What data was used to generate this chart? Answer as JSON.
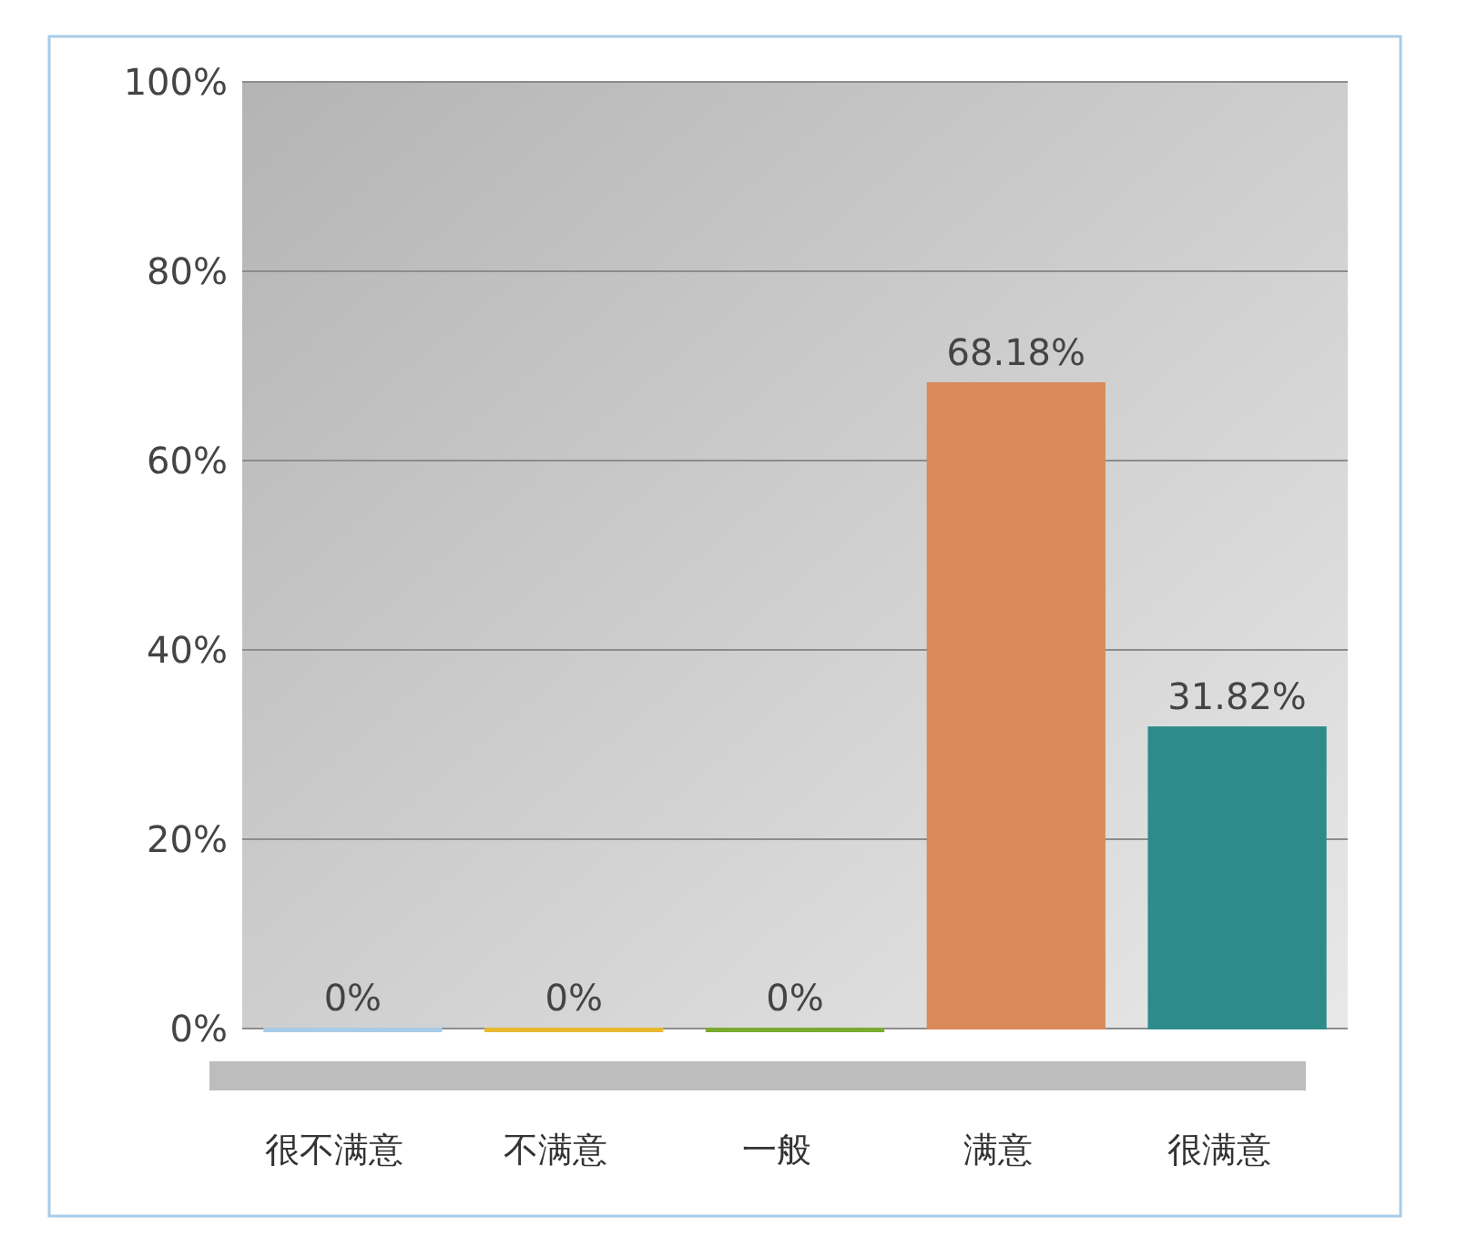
{
  "chart_data": {
    "type": "bar",
    "categories": [
      "很不满意",
      "不满意",
      "一般",
      "满意",
      "很满意"
    ],
    "values": [
      0,
      0,
      0,
      68.18,
      31.82
    ],
    "colors": [
      "#a8cce8",
      "#e8b830",
      "#7aaa30",
      "#d9895a",
      "#2e8b8b"
    ],
    "value_labels": [
      "0%",
      "0%",
      "0%",
      "68.18%",
      "31.82%"
    ],
    "ylim": [
      0,
      100
    ],
    "yticks": [
      {
        "value": 0,
        "label": "0%"
      },
      {
        "value": 20,
        "label": "20%"
      },
      {
        "value": 40,
        "label": "40%"
      },
      {
        "value": 60,
        "label": "60%"
      },
      {
        "value": 80,
        "label": "80%"
      },
      {
        "value": 100,
        "label": "100%"
      }
    ],
    "grid": "y"
  }
}
